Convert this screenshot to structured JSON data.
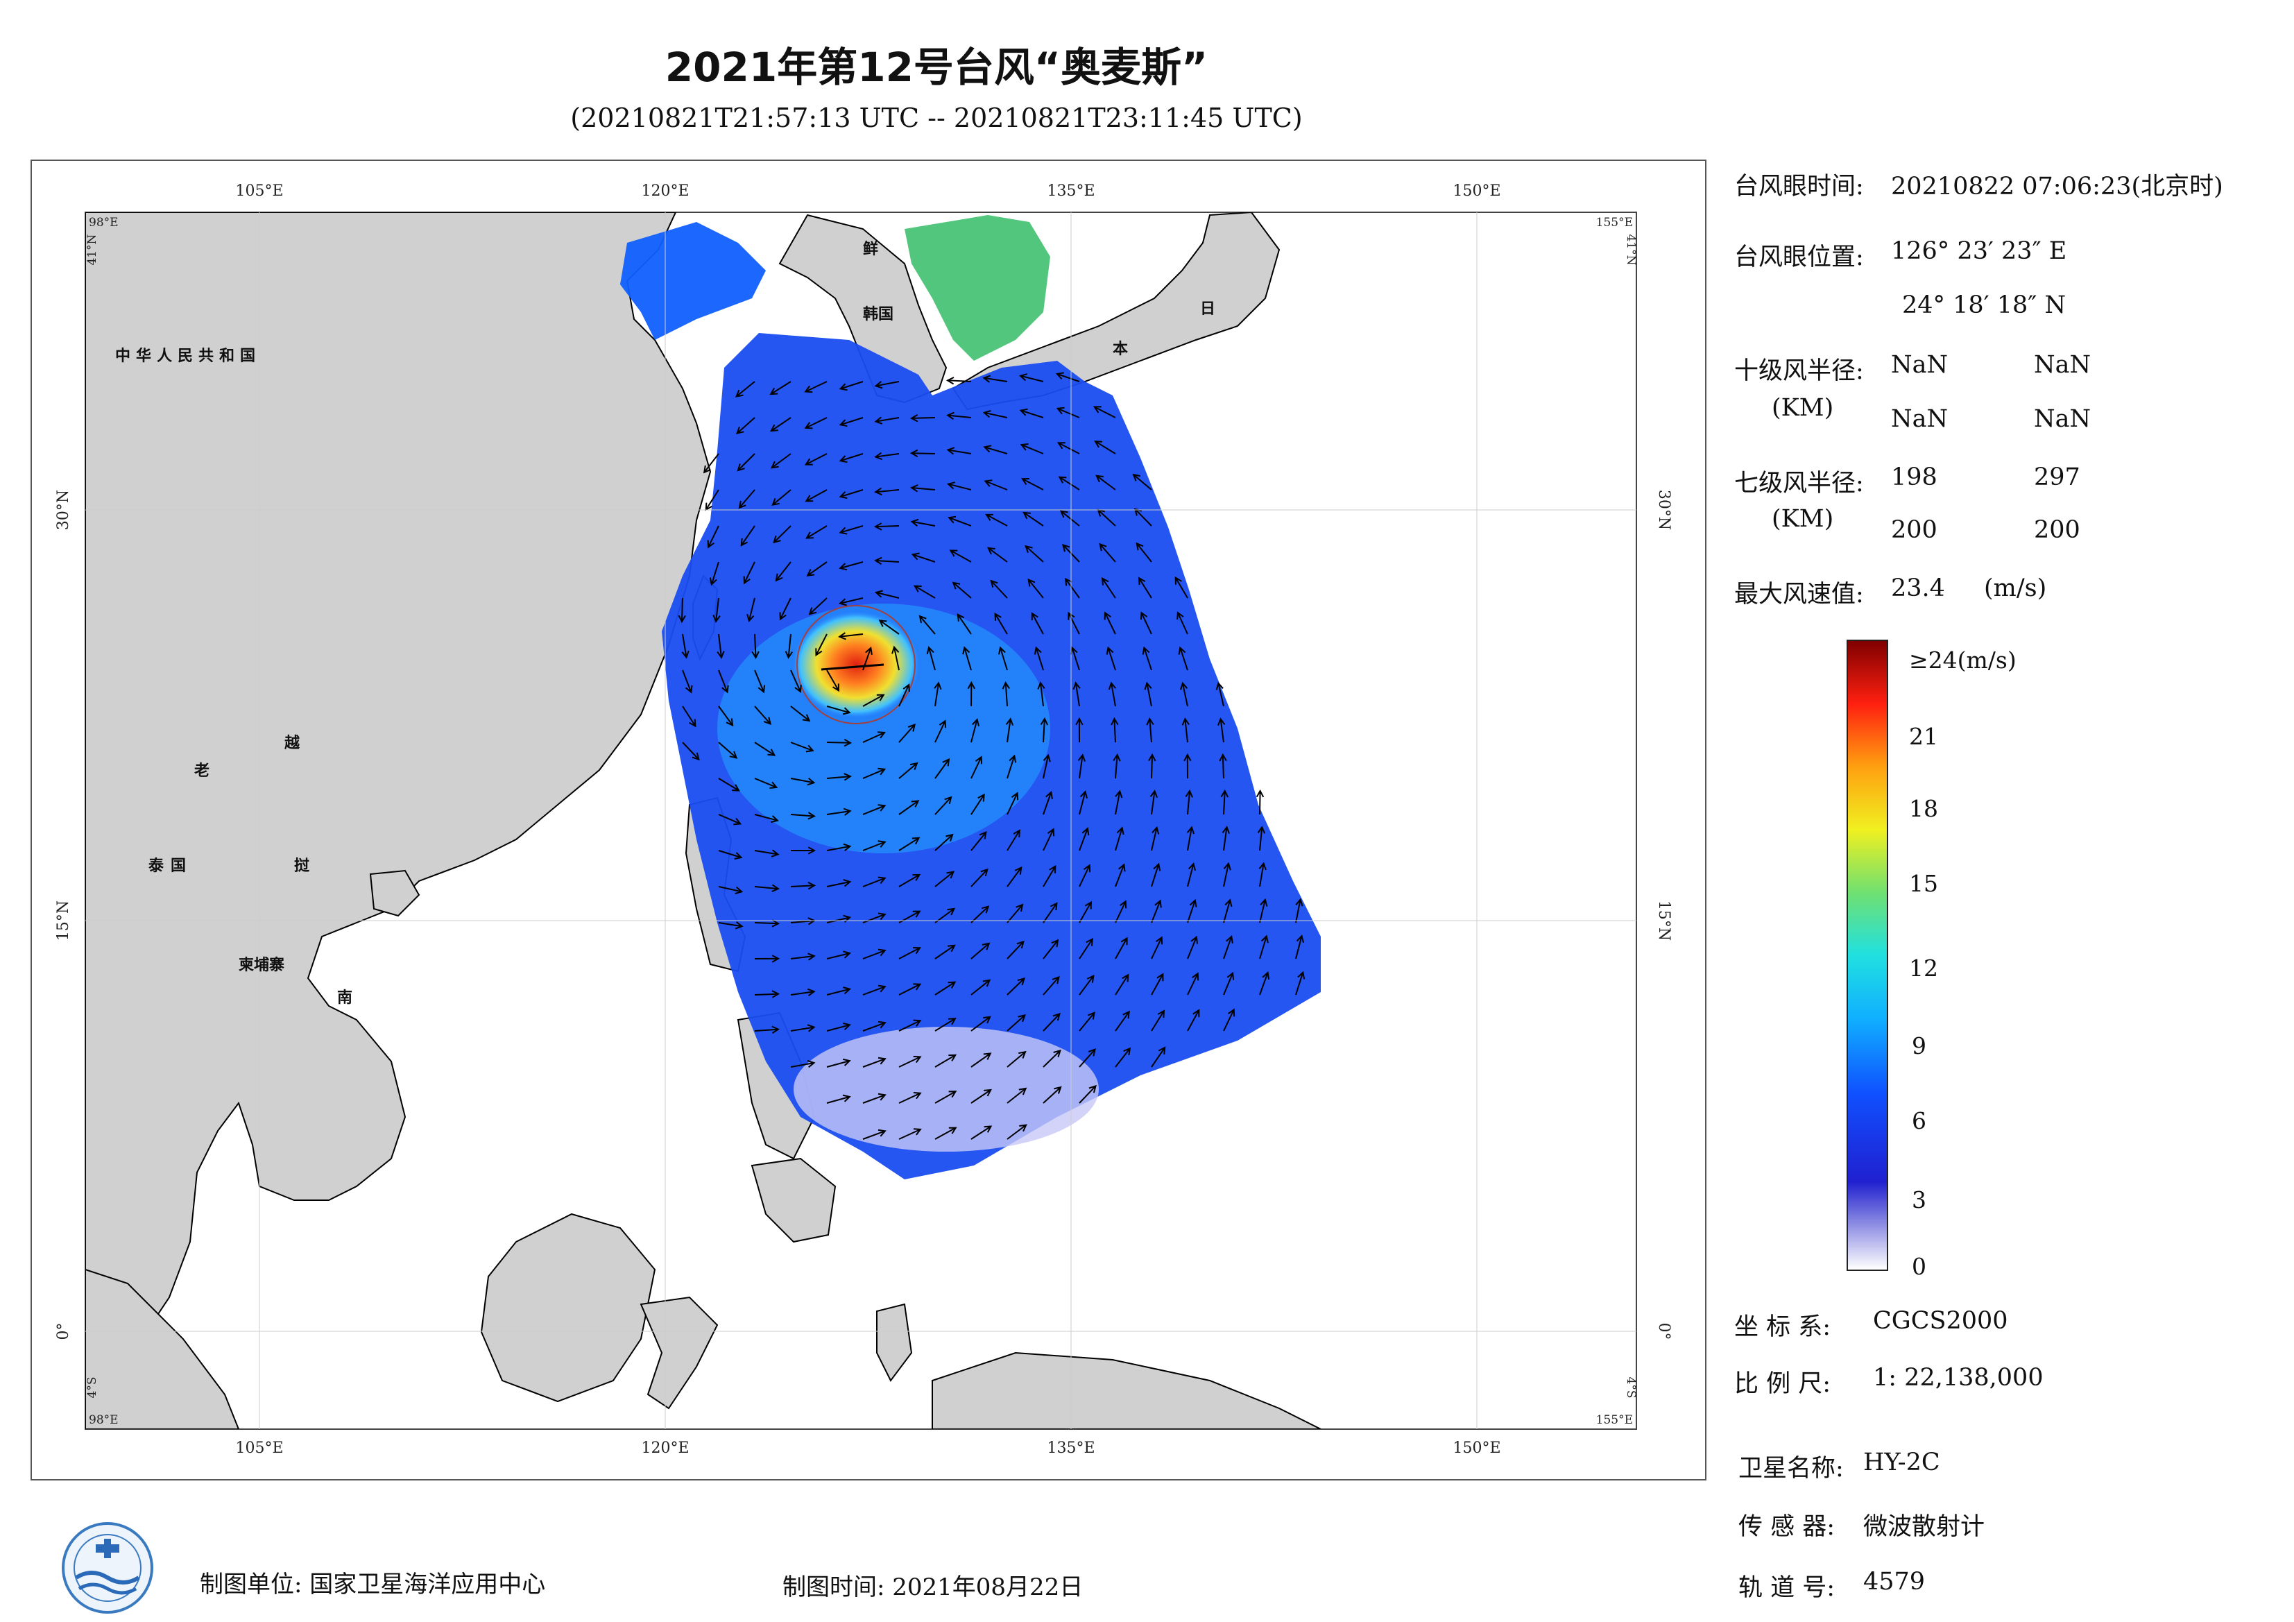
{
  "header": {
    "title": "2021年第12号台风“奥麦斯”",
    "subtitle": "(20210821T21:57:13 UTC -- 20210821T23:11:45 UTC)"
  },
  "map": {
    "lon_ticks": [
      "105°E",
      "120°E",
      "135°E",
      "150°E"
    ],
    "lat_ticks": [
      "30°N",
      "15°N",
      "0°"
    ],
    "corners": {
      "tl_lon": "98°E",
      "tl_lat": "41°N",
      "tr_lon": "155°E",
      "tr_lat": "41°N",
      "bl_lon": "98°E",
      "bl_lat": "4°S",
      "br_lon": "155°E",
      "br_lat": "4°S"
    },
    "labels": {
      "china": "中华人民共和国",
      "laos": "老",
      "vietnam1": "越",
      "vietnam2": "南",
      "thailand": "泰国",
      "cambodia": "柬埔寨",
      "myanmar_partial": "挝",
      "korea_n": "鲜",
      "korea_s": "韩国",
      "japan1": "日",
      "japan2": "本"
    },
    "colors": {
      "land": "#d0d0d0",
      "ocean": "#ffffff",
      "coast": "#000000"
    }
  },
  "info": {
    "eye_time_label": "台风眼时间:",
    "eye_time_value": "20210822 07:06:23(北京时)",
    "eye_pos_label": "台风眼位置:",
    "eye_lon": "126° 23′ 23″ E",
    "eye_lat": "24° 18′ 18″ N",
    "r10_label": "十级风半径:",
    "r10_unit": "(KM)",
    "r10_values": [
      "NaN",
      "NaN",
      "NaN",
      "NaN"
    ],
    "r7_label": "七级风半径:",
    "r7_unit": "(KM)",
    "r7_values": [
      "198",
      "297",
      "200",
      "200"
    ],
    "max_wind_label": "最大风速值:",
    "max_wind_value": "23.4",
    "max_wind_unit": "(m/s)"
  },
  "colorbar": {
    "top_label": "≥24(m/s)",
    "tick_labels": [
      "21",
      "18",
      "15",
      "12",
      "9",
      "6",
      "3",
      "0"
    ]
  },
  "meta_right": {
    "crs_label": "坐 标 系:",
    "crs_value": "CGCS2000",
    "scale_label": "比 例 尺:",
    "scale_value": "1: 22,138,000",
    "sat_label": "卫星名称:",
    "sat_value": "HY-2C",
    "sensor_label": "传 感 器:",
    "sensor_value": "微波散射计",
    "orbit_label": "轨 道 号:",
    "orbit_value": "4579"
  },
  "footer": {
    "org": "制图单位: 国家卫星海洋应用中心",
    "date": "制图时间: 2021年08月22日"
  }
}
